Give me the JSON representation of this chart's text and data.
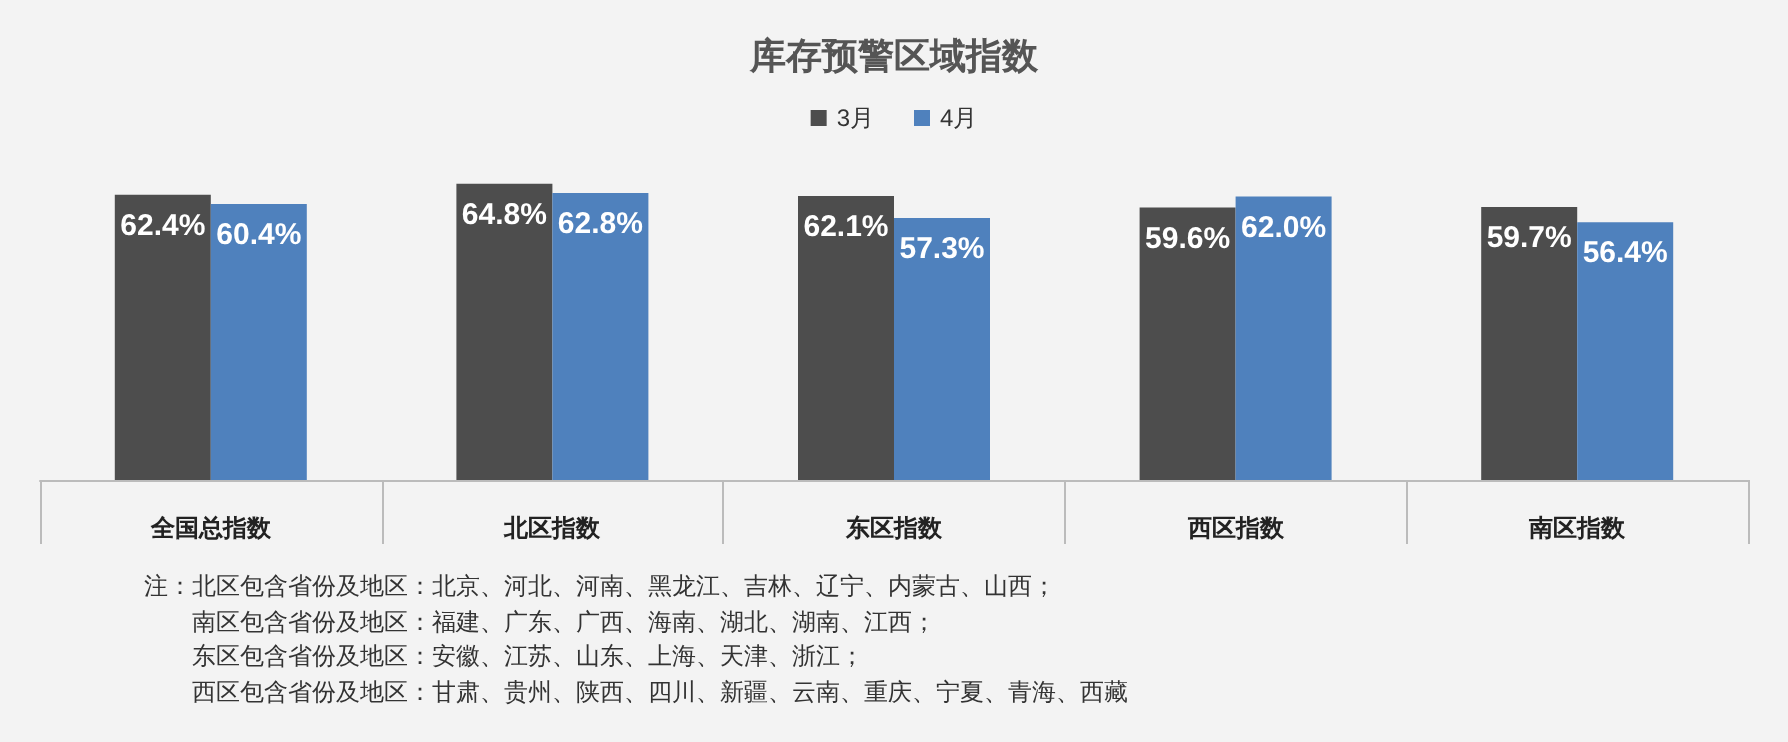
{
  "chart_data": {
    "type": "bar",
    "title": "库存预警区域指数",
    "categories": [
      "全国总指数",
      "北区指数",
      "东区指数",
      "西区指数",
      "南区指数"
    ],
    "series": [
      {
        "name": "3月",
        "color": "#4d4d4d",
        "values": [
          62.4,
          64.8,
          62.1,
          59.6,
          59.7
        ],
        "value_labels": [
          "62.4%",
          "64.8%",
          "62.1%",
          "59.6%",
          "59.7%"
        ]
      },
      {
        "name": "4月",
        "color": "#4f81bd",
        "values": [
          60.4,
          62.8,
          57.3,
          62.0,
          56.4
        ],
        "value_labels": [
          "60.4%",
          "62.8%",
          "57.3%",
          "62.0%",
          "56.4%"
        ]
      }
    ],
    "grid": false,
    "legend": "top",
    "annotations": [
      "注：北区包含省份及地区：北京、河北、河南、黑龙江、吉林、辽宁、内蒙古、山西；",
      "南区包含省份及地区：福建、广东、广西、海南、湖北、湖南、江西；",
      "东区包含省份及地区：安徽、江苏、山东、上海、天津、浙江；",
      "西区包含省份及地区：甘肃、贵州、陕西、四川、新疆、云南、重庆、宁夏、青海、西藏"
    ]
  }
}
